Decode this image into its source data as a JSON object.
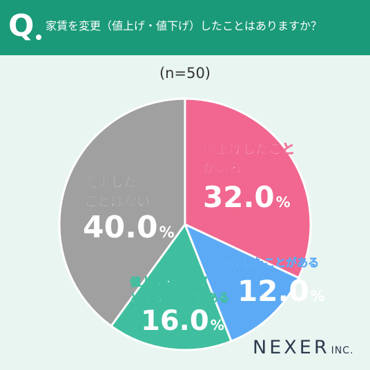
{
  "header": {
    "q_label": "Q",
    "question": "家賃を変更（値上げ・値下げ）したことはありますか？"
  },
  "note": "(n=50)",
  "chart_data": {
    "type": "pie",
    "slices": [
      {
        "label": [
          "値上げしたこと",
          "がある"
        ],
        "value": 32.0,
        "display": "32.0",
        "color": "#f1678f"
      },
      {
        "label": [
          "値下げしたことがある"
        ],
        "value": 12.0,
        "display": "12.0",
        "color": "#5caaf5"
      },
      {
        "label": [
          "値上げ・値下げ",
          "どちらも経験がある"
        ],
        "value": 16.0,
        "display": "16.0",
        "color": "#3fbf9f"
      },
      {
        "label": [
          "変更した",
          "ことはない"
        ],
        "value": 40.0,
        "display": "40.0",
        "color": "#a0a0a0"
      }
    ],
    "unit": "%",
    "start_angle": "12 o'clock",
    "direction": "clockwise"
  },
  "logo": {
    "main": "NEXER",
    "suffix": "INC."
  }
}
